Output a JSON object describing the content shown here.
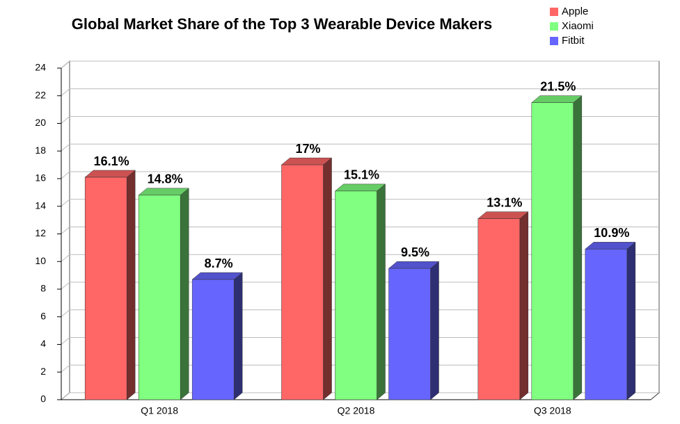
{
  "chart_data": {
    "type": "bar3d",
    "title": "Global Market Share of the Top 3 Wearable Device Makers",
    "categories": [
      "Q1 2018",
      "Q2 2018",
      "Q3 2018"
    ],
    "series": [
      {
        "name": "Apple",
        "color": "#ff6666",
        "values": [
          16.1,
          17,
          13.1
        ],
        "value_labels": [
          "16.1%",
          "17%",
          "13.1%"
        ]
      },
      {
        "name": "Xiaomi",
        "color": "#80ff80",
        "values": [
          14.8,
          15.1,
          21.5
        ],
        "value_labels": [
          "14.8%",
          "15.1%",
          "21.5%"
        ]
      },
      {
        "name": "Fitbit",
        "color": "#6666ff",
        "values": [
          8.7,
          9.5,
          10.9
        ],
        "value_labels": [
          "8.7%",
          "9.5%",
          "10.9%"
        ]
      }
    ],
    "ylim": [
      0,
      24
    ],
    "yticks": [
      0,
      2,
      4,
      6,
      8,
      10,
      12,
      14,
      16,
      18,
      20,
      22,
      24
    ],
    "grid": true,
    "legend": "top-right"
  }
}
